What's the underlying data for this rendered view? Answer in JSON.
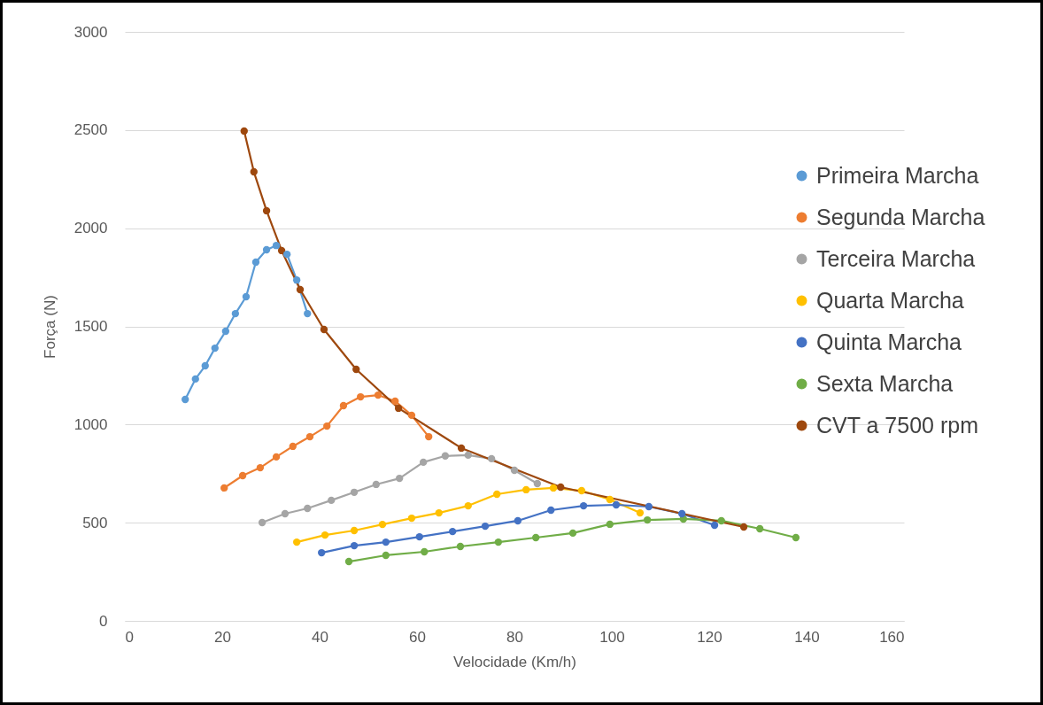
{
  "chart_data": {
    "type": "line",
    "xlabel": "Velocidade (Km/h)",
    "ylabel": "Força (N)",
    "xlim": [
      0,
      160
    ],
    "xticks": [
      0,
      20,
      40,
      60,
      80,
      100,
      120,
      140,
      160
    ],
    "ylim": [
      0,
      3000
    ],
    "yticks": [
      0,
      500,
      1000,
      1500,
      2000,
      2500,
      3000
    ],
    "grid": "y",
    "legend": "right",
    "marker": "circle",
    "line_style": "solid",
    "series": [
      {
        "name": "Primeira Marcha",
        "color": "#5b9bd5",
        "x": [
          12.4,
          14.5,
          16.5,
          18.5,
          20.7,
          22.7,
          24.9,
          26.9,
          29.1,
          31.1,
          33.3,
          35.3,
          37.5
        ],
        "values": [
          1128,
          1232,
          1299,
          1389,
          1475,
          1565,
          1651,
          1827,
          1890,
          1912,
          1867,
          1736,
          1565
        ]
      },
      {
        "name": "Segunda Marcha",
        "color": "#ed7d31",
        "x": [
          20.4,
          24.2,
          27.8,
          31.1,
          34.5,
          38,
          41.5,
          44.9,
          48.4,
          52,
          55.5,
          58.9,
          62.4
        ],
        "values": [
          677,
          740,
          780,
          835,
          889,
          938,
          992,
          1096,
          1141,
          1150,
          1119,
          1047,
          938
        ]
      },
      {
        "name": "Terceira Marcha",
        "color": "#a5a5a5",
        "x": [
          28.2,
          32.9,
          37.5,
          42.4,
          47.1,
          51.6,
          56.4,
          61.3,
          65.8,
          70.5,
          75.3,
          80,
          84.7
        ],
        "values": [
          501,
          546,
          573,
          614,
          655,
          695,
          726,
          808,
          840,
          844,
          826,
          767,
          699
        ]
      },
      {
        "name": "Quarta Marcha",
        "color": "#ffc000",
        "x": [
          35.3,
          41.1,
          47.1,
          52.9,
          58.9,
          64.5,
          70.5,
          76.4,
          82.4,
          88,
          93.8,
          99.6,
          105.8
        ],
        "values": [
          401,
          437,
          460,
          491,
          523,
          550,
          586,
          645,
          668,
          677,
          663,
          618,
          550
        ]
      },
      {
        "name": "Quinta Marcha",
        "color": "#4472c4",
        "x": [
          40.4,
          47.1,
          53.6,
          60.5,
          67.3,
          74,
          80.7,
          87.5,
          94.2,
          100.9,
          107.6,
          114.4,
          121.1
        ],
        "values": [
          347,
          383,
          401,
          428,
          455,
          482,
          510,
          564,
          586,
          591,
          582,
          546,
          487
        ]
      },
      {
        "name": "Sexta Marcha",
        "color": "#70ad47",
        "x": [
          46,
          53.6,
          61.5,
          68.9,
          76.7,
          84.4,
          92,
          99.6,
          107.3,
          114.7,
          122.5,
          130.4,
          137.8
        ],
        "values": [
          302,
          334,
          352,
          379,
          401,
          424,
          447,
          492,
          514,
          519,
          510,
          469,
          424
        ]
      },
      {
        "name": "CVT a 7500 rpm",
        "color": "#9e480e",
        "x": [
          24.5,
          26.5,
          29.1,
          32.2,
          36,
          40.9,
          47.5,
          56.2,
          69.1,
          89.5,
          127.1
        ],
        "values": [
          2495,
          2287,
          2089,
          1886,
          1687,
          1484,
          1281,
          1083,
          880,
          681,
          478
        ]
      }
    ]
  }
}
